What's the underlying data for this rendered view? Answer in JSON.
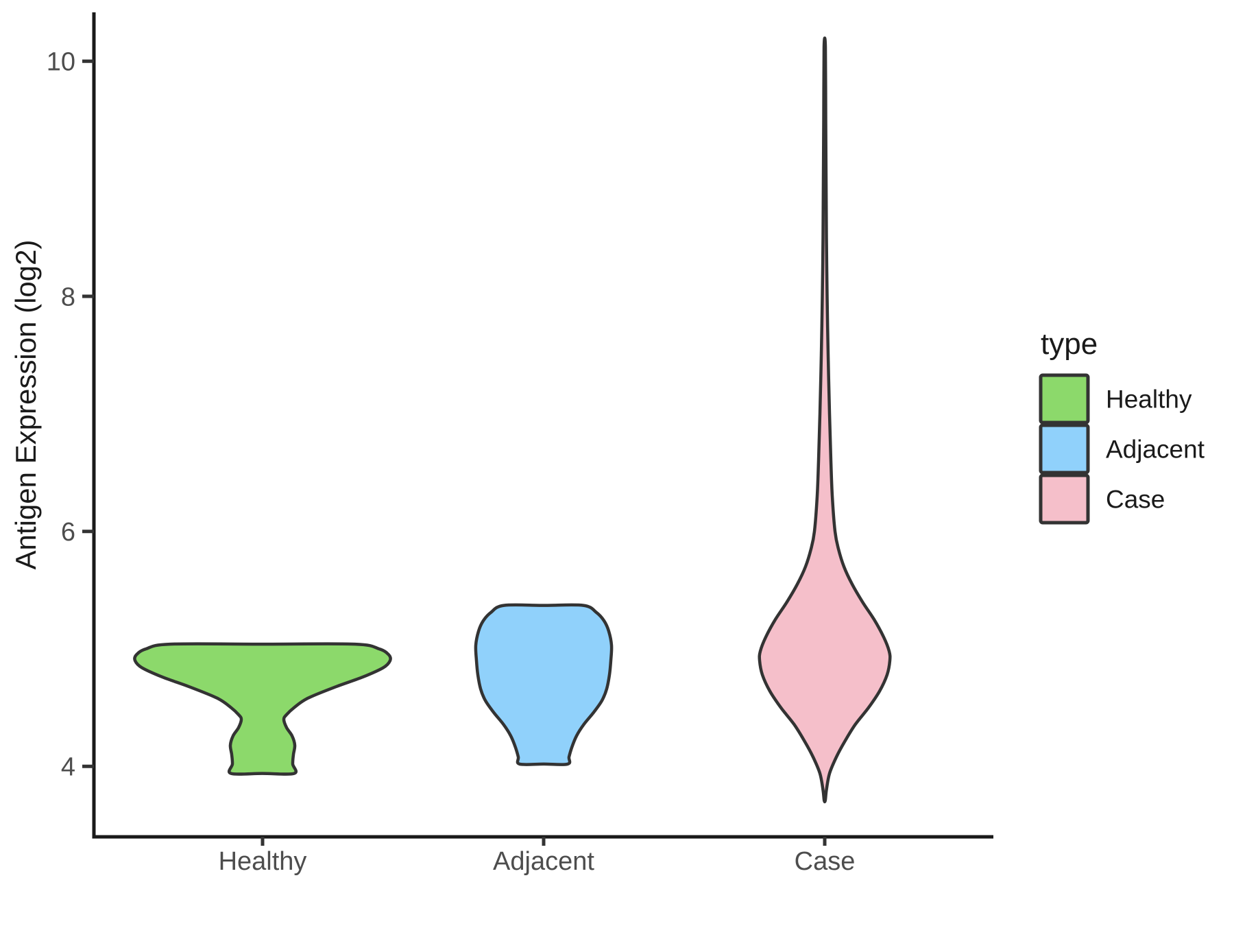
{
  "chart_data": {
    "type": "violin",
    "title": "",
    "xlabel": "",
    "ylabel": "Antigen Expression (log2)",
    "categories": [
      "Healthy",
      "Adjacent",
      "Case"
    ],
    "y_ticks": [
      4,
      6,
      8,
      10
    ],
    "ylim": [
      3.4,
      10.44
    ],
    "grid": false,
    "outline_color": "#333333",
    "axis_color": "#1A1A1A",
    "tick_color": "#333333",
    "tick_label_color": "#4D4D4D",
    "legend": {
      "title": "type",
      "position": "right",
      "entries": [
        {
          "label": "Healthy",
          "color": "#8CD96B"
        },
        {
          "label": "Adjacent",
          "color": "#90D1FB"
        },
        {
          "label": "Case",
          "color": "#F5BFCA"
        }
      ]
    },
    "series": [
      {
        "name": "Healthy",
        "fill": "#8CD96B",
        "y_min": 3.94,
        "y_max": 5.04,
        "peak_value": 4.9,
        "profile": [
          [
            5.04,
            135
          ],
          [
            5.0,
            170
          ],
          [
            4.95,
            184
          ],
          [
            4.9,
            186
          ],
          [
            4.84,
            176
          ],
          [
            4.76,
            146
          ],
          [
            4.68,
            108
          ],
          [
            4.58,
            66
          ],
          [
            4.5,
            46
          ],
          [
            4.44,
            35
          ],
          [
            4.4,
            31
          ],
          [
            4.33,
            35
          ],
          [
            4.26,
            43
          ],
          [
            4.18,
            47
          ],
          [
            4.1,
            45
          ],
          [
            4.02,
            44
          ],
          [
            3.94,
            46
          ]
        ]
      },
      {
        "name": "Adjacent",
        "fill": "#90D1FB",
        "y_min": 4.02,
        "y_max": 5.37,
        "peak_value": 5.0,
        "profile": [
          [
            5.37,
            58
          ],
          [
            5.31,
            77
          ],
          [
            5.24,
            88
          ],
          [
            5.15,
            95
          ],
          [
            5.03,
            99
          ],
          [
            4.9,
            98
          ],
          [
            4.78,
            96
          ],
          [
            4.66,
            92
          ],
          [
            4.56,
            85
          ],
          [
            4.46,
            73
          ],
          [
            4.36,
            59
          ],
          [
            4.26,
            48
          ],
          [
            4.16,
            41
          ],
          [
            4.08,
            37
          ],
          [
            4.02,
            35
          ]
        ]
      },
      {
        "name": "Case",
        "fill": "#F5BFCA",
        "y_min": 3.71,
        "y_max": 10.12,
        "peak_value": 4.95,
        "profile": [
          [
            10.12,
            1
          ],
          [
            9.5,
            1.5
          ],
          [
            9.0,
            2
          ],
          [
            8.5,
            2.5
          ],
          [
            8.0,
            3.5
          ],
          [
            7.5,
            5
          ],
          [
            7.0,
            7
          ],
          [
            6.6,
            9
          ],
          [
            6.3,
            11
          ],
          [
            6.0,
            15
          ],
          [
            5.85,
            20
          ],
          [
            5.7,
            28
          ],
          [
            5.55,
            40
          ],
          [
            5.4,
            55
          ],
          [
            5.25,
            72
          ],
          [
            5.1,
            86
          ],
          [
            4.98,
            94
          ],
          [
            4.9,
            95
          ],
          [
            4.78,
            91
          ],
          [
            4.64,
            80
          ],
          [
            4.5,
            64
          ],
          [
            4.36,
            45
          ],
          [
            4.22,
            30
          ],
          [
            4.08,
            17
          ],
          [
            3.94,
            7
          ],
          [
            3.8,
            2.5
          ],
          [
            3.71,
            0.8
          ]
        ]
      }
    ]
  }
}
